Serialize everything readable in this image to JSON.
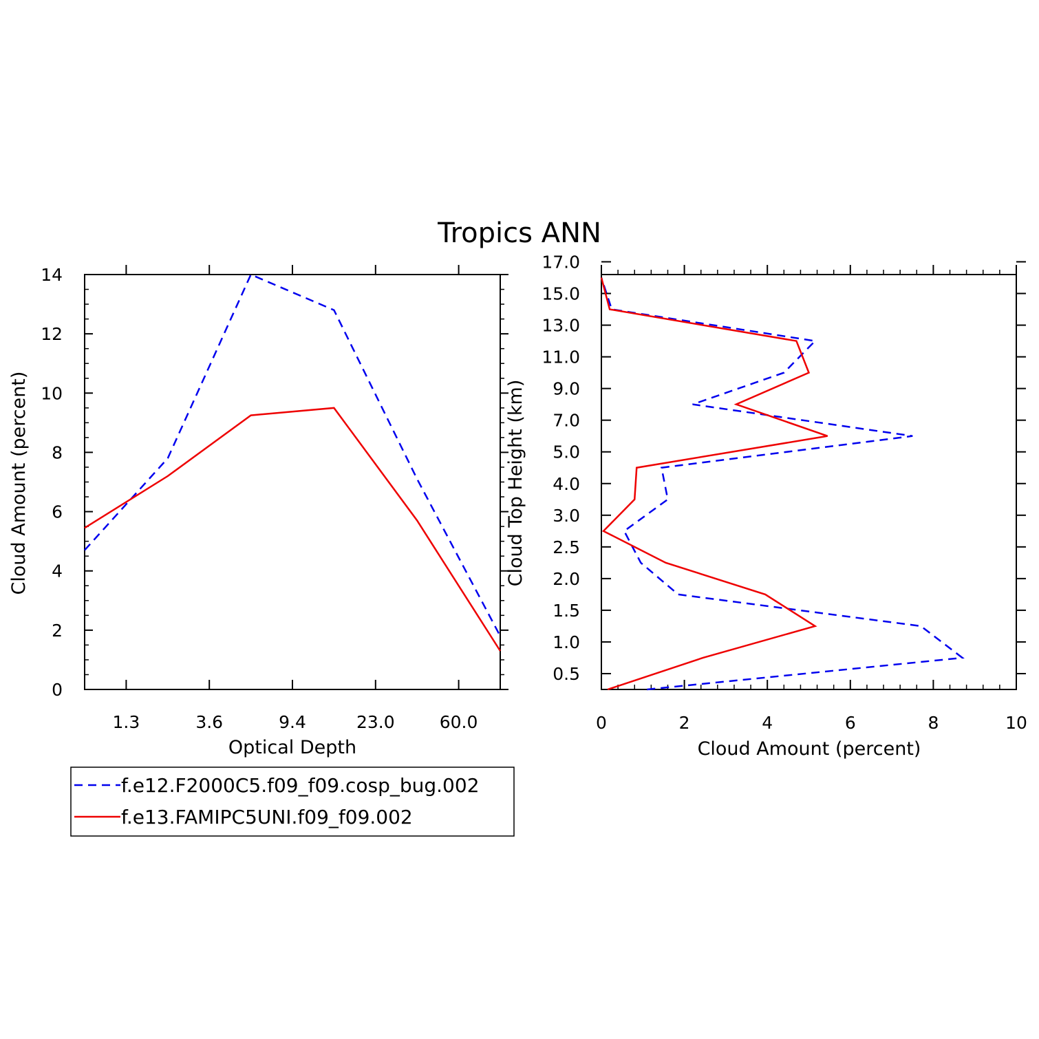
{
  "figure": {
    "title": "Tropics ANN"
  },
  "colors": {
    "series_blue": "#0000ee",
    "series_red": "#ee0000",
    "axis": "#000000",
    "background": "#ffffff"
  },
  "legend": {
    "entries": [
      {
        "label": "f.e12.F2000C5.f09_f09.cosp_bug.002",
        "color": "#0000ee",
        "style": "dashed"
      },
      {
        "label": "f.e13.FAMIPC5UNI.f09_f09.002",
        "color": "#ee0000",
        "style": "solid"
      }
    ],
    "placement": "below-left-panel"
  },
  "chart_data": [
    {
      "type": "line",
      "xlabel": "Optical Depth",
      "ylabel": "Cloud Amount (percent)",
      "x_tick_labels": [
        "1.3",
        "3.6",
        "9.4",
        "23.0",
        "60.0"
      ],
      "x_bin_index": [
        0,
        1,
        2,
        3,
        4,
        5
      ],
      "y_ticks": [
        0,
        2,
        4,
        6,
        8,
        10,
        12,
        14
      ],
      "ylim": [
        0,
        14
      ],
      "xlim": [
        0,
        5
      ],
      "grid": false,
      "series": [
        {
          "name": "f.e12.F2000C5.f09_f09.cosp_bug.002",
          "color": "#0000ee",
          "dash": true,
          "values": [
            4.7,
            7.8,
            14.0,
            12.8,
            7.1,
            1.8
          ]
        },
        {
          "name": "f.e13.FAMIPC5UNI.f09_f09.002",
          "color": "#ee0000",
          "dash": false,
          "values": [
            5.45,
            7.2,
            9.25,
            9.5,
            5.7,
            1.3
          ]
        }
      ]
    },
    {
      "type": "line",
      "xlabel": "Cloud Amount (percent)",
      "ylabel": "Cloud Top Height (km)",
      "x_ticks": [
        0,
        2,
        4,
        6,
        8,
        10
      ],
      "xlim": [
        0,
        10
      ],
      "y_tick_labels": [
        "0.5",
        "1.0",
        "1.5",
        "2.0",
        "2.5",
        "3.0",
        "4.0",
        "5.0",
        "7.0",
        "9.0",
        "11.0",
        "13.0",
        "15.0",
        "17.0"
      ],
      "y_level_count": 14,
      "grid": false,
      "series": [
        {
          "name": "f.e12.F2000C5.f09_f09.cosp_bug.002",
          "color": "#0000ee",
          "dash": true,
          "values": [
            1.1,
            8.7,
            7.7,
            1.85,
            0.95,
            0.55,
            1.6,
            1.45,
            7.5,
            2.2,
            4.4,
            5.15,
            0.25,
            0.0
          ]
        },
        {
          "name": "f.e13.FAMIPC5UNI.f09_f09.002",
          "color": "#ee0000",
          "dash": false,
          "values": [
            0.15,
            2.45,
            5.15,
            3.95,
            1.55,
            0.05,
            0.8,
            0.85,
            5.45,
            3.25,
            5.0,
            4.7,
            0.2,
            0.0
          ]
        }
      ]
    }
  ]
}
